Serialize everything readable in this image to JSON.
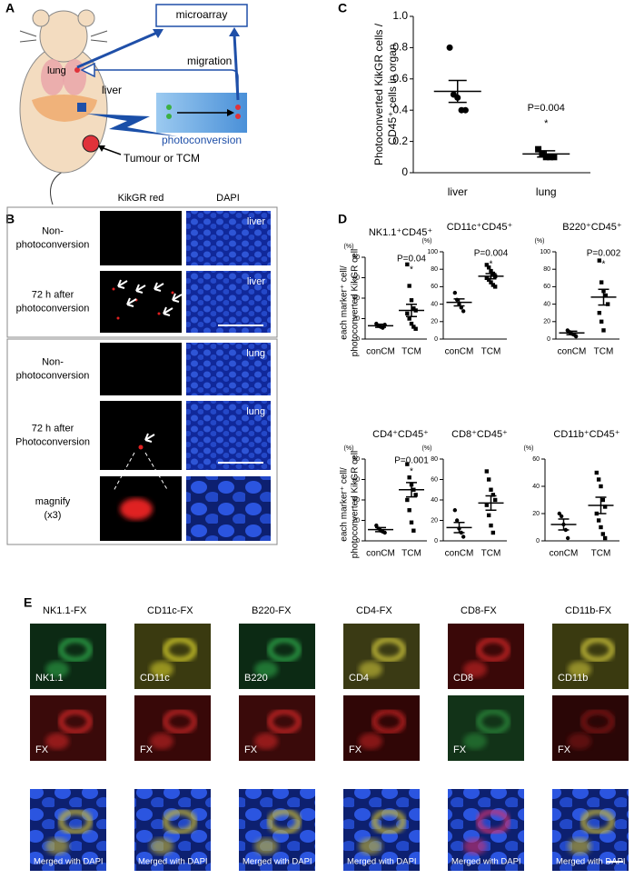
{
  "panel_labels": [
    "A",
    "B",
    "C",
    "D",
    "E"
  ],
  "panel_a": {
    "microarray": "microarray",
    "migration": "migration",
    "lung": "lung",
    "liver": "liver",
    "photoconversion": "photoconversion",
    "tumour": "Tumour or TCM"
  },
  "panel_b": {
    "column_headers": [
      "KikGR red",
      "DAPI"
    ],
    "rows": [
      {
        "label": [
          "Non-",
          "photoconversion"
        ],
        "organ": "liver"
      },
      {
        "label": [
          "72 h after",
          "photoconversion"
        ],
        "organ": "liver"
      },
      {
        "label": [
          "Non-",
          "photoconversion"
        ],
        "organ": "lung"
      },
      {
        "label": [
          "72 h after",
          "Photoconversion"
        ],
        "organ": "lung"
      },
      {
        "label": [
          "magnify",
          "(x3)"
        ]
      }
    ]
  },
  "chart_data": [
    {
      "type": "dotplot",
      "y_label": [
        "Photoconverted KikGR cells /",
        "CD45⁺ cells in organ"
      ],
      "categories": [
        "liver",
        "lung"
      ],
      "markers": [
        "circle",
        "square"
      ],
      "color": "#000000",
      "points": [
        [
          0.8,
          0.5,
          0.48,
          0.4,
          0.4
        ],
        [
          0.15,
          0.12,
          0.1,
          0.1,
          0.1
        ]
      ],
      "mean": [
        0.52,
        0.12
      ],
      "sem": [
        0.07,
        0.02
      ],
      "ylim": [
        0,
        1
      ],
      "yticks": [
        0,
        0.2,
        0.4,
        0.6,
        0.8,
        {
          "value": 1,
          "label": "1.0"
        }
      ],
      "annotations": [
        "P=0.004",
        "*"
      ]
    },
    {
      "type": "dotplot",
      "title": "NK1.1⁺CD45⁺",
      "unit_label": "(%)",
      "y_label": [
        "each marker⁺ cell/",
        "photoconverted KikGR cell"
      ],
      "categories": [
        "conCM",
        "TCM"
      ],
      "markers": [
        "circle",
        "square"
      ],
      "color": "#000000",
      "points": [
        [
          15,
          13,
          12,
          11,
          14
        ],
        [
          73,
          52,
          38,
          30,
          28,
          25,
          20,
          15,
          12,
          10
        ]
      ],
      "mean": [
        13,
        28
      ],
      "sem": [
        1.5,
        6
      ],
      "ylim": [
        0,
        80
      ],
      "yticks": [
        0,
        20,
        40,
        60,
        80
      ],
      "annotations": [
        "P=0.04",
        "*"
      ]
    },
    {
      "type": "dotplot",
      "title": "CD11c⁺CD45⁺",
      "unit_label": "(%)",
      "categories": [
        "conCM",
        "TCM"
      ],
      "markers": [
        "circle",
        "square"
      ],
      "color": "#000000",
      "points": [
        [
          53,
          45,
          40,
          36,
          32
        ],
        [
          85,
          82,
          78,
          75,
          72,
          70,
          68,
          65,
          62,
          60
        ]
      ],
      "mean": [
        42,
        72
      ],
      "sem": [
        4,
        3
      ],
      "ylim": [
        0,
        100
      ],
      "yticks": [
        0,
        20,
        40,
        60,
        80,
        100
      ],
      "annotations": [
        "P=0.004",
        "*"
      ]
    },
    {
      "type": "dotplot",
      "title": "B220⁺CD45⁺",
      "unit_label": "(%)",
      "categories": [
        "conCM",
        "TCM"
      ],
      "markers": [
        "circle",
        "square"
      ],
      "color": "#000000",
      "points": [
        [
          10,
          8,
          6,
          5,
          3
        ],
        [
          90,
          65,
          55,
          50,
          40,
          30,
          20,
          10
        ]
      ],
      "mean": [
        7,
        48
      ],
      "sem": [
        2,
        9
      ],
      "ylim": [
        0,
        100
      ],
      "yticks": [
        0,
        20,
        40,
        60,
        80,
        100
      ],
      "annotations": [
        "P=0.002",
        "*"
      ]
    },
    {
      "type": "dotplot",
      "title": "CD4⁺CD45⁺",
      "unit_label": "(%)",
      "y_label": [
        "each marker⁺ cell/",
        "photoconverted KikGR cell"
      ],
      "categories": [
        "conCM",
        "TCM"
      ],
      "markers": [
        "circle",
        "square"
      ],
      "color": "#000000",
      "points": [
        [
          15,
          12,
          10,
          9,
          8
        ],
        [
          75,
          62,
          55,
          50,
          45,
          40,
          30,
          18,
          10
        ]
      ],
      "mean": [
        11,
        50
      ],
      "sem": [
        2,
        7
      ],
      "ylim": [
        0,
        80
      ],
      "yticks": [
        0,
        20,
        40,
        60,
        80
      ],
      "annotations": [
        "P=0.001",
        "*"
      ]
    },
    {
      "type": "dotplot",
      "title": "CD8⁺CD45⁺",
      "unit_label": "(%)",
      "categories": [
        "conCM",
        "TCM"
      ],
      "markers": [
        "circle",
        "square"
      ],
      "color": "#000000",
      "points": [
        [
          30,
          20,
          12,
          8,
          4
        ],
        [
          68,
          60,
          50,
          45,
          40,
          35,
          25,
          15,
          8
        ]
      ],
      "mean": [
        13,
        37
      ],
      "sem": [
        5,
        7
      ],
      "ylim": [
        0,
        80
      ],
      "yticks": [
        0,
        20,
        40,
        60,
        80
      ]
    },
    {
      "type": "dotplot",
      "title": "CD11b⁺CD45⁺",
      "unit_label": "(%)",
      "categories": [
        "conCM",
        "TCM"
      ],
      "markers": [
        "circle",
        "square"
      ],
      "color": "#000000",
      "points": [
        [
          20,
          18,
          12,
          8,
          2
        ],
        [
          50,
          45,
          40,
          30,
          25,
          20,
          15,
          10,
          5,
          2
        ]
      ],
      "mean": [
        12,
        26
      ],
      "sem": [
        4,
        6
      ],
      "ylim": [
        0,
        60
      ],
      "yticks": [
        0,
        20,
        40,
        60
      ]
    }
  ],
  "panel_e": {
    "columns": [
      {
        "header": "NK1.1-FX",
        "marker": "NK1.1",
        "fx": "FX",
        "merged": "Merged with DAPI"
      },
      {
        "header": "CD11c-FX",
        "marker": "CD11c",
        "fx": "FX",
        "merged": "Merged with DAPI"
      },
      {
        "header": "B220-FX",
        "marker": "B220",
        "fx": "FX",
        "merged": "Merged with DAPI"
      },
      {
        "header": "CD4-FX",
        "marker": "CD4",
        "fx": "FX",
        "merged": "Merged with DAPI"
      },
      {
        "header": "CD8-FX",
        "marker": "CD8",
        "fx": "FX",
        "merged": "Merged with DAPI"
      },
      {
        "header": "CD11b-FX",
        "marker": "CD11b",
        "fx": "FX",
        "merged": "Merged with DAPI"
      }
    ]
  }
}
